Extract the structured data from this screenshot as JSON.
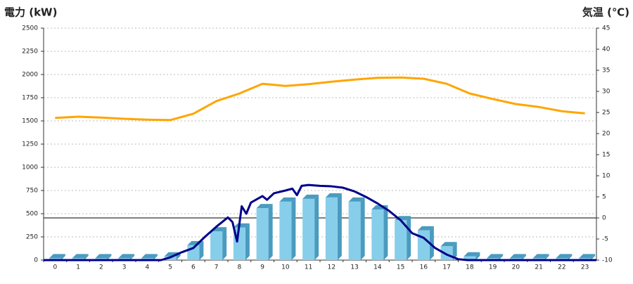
{
  "chart_data": {
    "type": "combo",
    "title_left": "電力 (kW)",
    "title_right": "気温 (℃)",
    "title_left_color": "#1a6fb5",
    "title_right_color": "#f07d1a",
    "categories": [
      "0",
      "1",
      "2",
      "3",
      "4",
      "5",
      "6",
      "7",
      "8",
      "9",
      "10",
      "11",
      "12",
      "13",
      "14",
      "15",
      "16",
      "17",
      "18",
      "19",
      "20",
      "21",
      "22",
      "23"
    ],
    "series": [
      {
        "kind": "bar",
        "color": "#87ceeb",
        "side_color": "#4a9bbf",
        "values": [
          20,
          20,
          20,
          20,
          20,
          40,
          160,
          310,
          350,
          560,
          630,
          660,
          675,
          630,
          545,
          430,
          320,
          150,
          40,
          20,
          20,
          20,
          20,
          20
        ]
      },
      {
        "kind": "line",
        "color": "#00008b",
        "x": [
          -0.5,
          4.6,
          5,
          5.5,
          6,
          6.5,
          7,
          7.5,
          7.7,
          7.9,
          8.1,
          8.3,
          8.5,
          9,
          9.2,
          9.5,
          10,
          10.3,
          10.5,
          10.7,
          11,
          11.5,
          12,
          12.5,
          13,
          13.5,
          14,
          14.5,
          15,
          15.5,
          16,
          16.5,
          17,
          17.5,
          17.9,
          23.5
        ],
        "values": [
          0,
          0,
          30,
          85,
          130,
          250,
          360,
          460,
          410,
          200,
          580,
          500,
          620,
          690,
          650,
          720,
          750,
          770,
          700,
          800,
          810,
          800,
          795,
          780,
          740,
          680,
          610,
          530,
          430,
          290,
          240,
          130,
          60,
          10,
          0,
          0
        ]
      },
      {
        "kind": "line",
        "color": "#ffa500",
        "axis": "y2",
        "values": [
          23.7,
          24,
          23.8,
          23.5,
          23.3,
          23.2,
          24.7,
          27.7,
          29.5,
          31.8,
          31.3,
          31.7,
          32.3,
          32.8,
          33.2,
          33.3,
          33,
          31.8,
          29.5,
          28.2,
          27,
          26.3,
          25.3,
          24.8
        ]
      }
    ],
    "ylim": [
      0,
      2500
    ],
    "yticks": [
      0,
      250,
      500,
      750,
      1000,
      1250,
      1500,
      1750,
      2000,
      2250,
      2500
    ],
    "y2lim": [
      -10,
      45
    ],
    "y2ticks": [
      -10,
      -5,
      0,
      5,
      10,
      15,
      20,
      25,
      30,
      35,
      40,
      45
    ],
    "grid": true,
    "y2_zero_line": true
  }
}
